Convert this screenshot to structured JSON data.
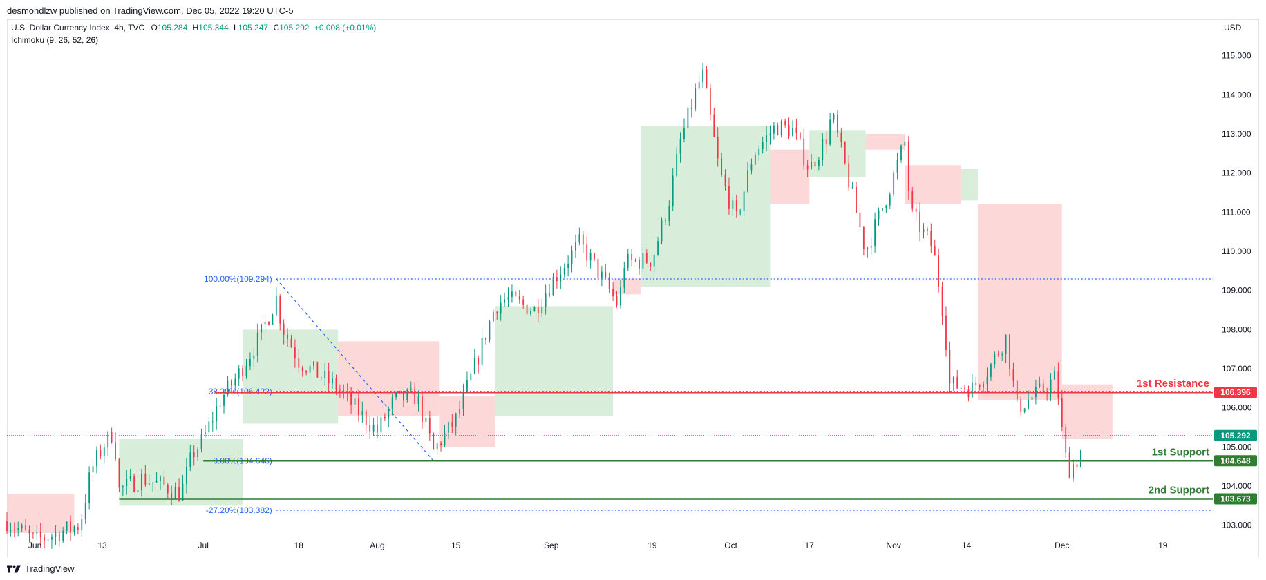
{
  "header": {
    "published": "desmondlzw published on TradingView.com, Dec 05, 2022 19:20 UTC-5"
  },
  "legend": {
    "symbol": "U.S. Dollar Currency Index, 4h, TVC",
    "o_label": "O",
    "o_value": "105.284",
    "h_label": "H",
    "h_value": "105.344",
    "l_label": "L",
    "l_value": "105.247",
    "c_label": "C",
    "c_value": "105.292",
    "change": "+0.008 (+0.01%)",
    "indicator": "Ichimoku (9, 26, 52, 26)"
  },
  "currency": "USD",
  "footer": {
    "brand": "TradingView",
    "logo_icon": "tradingview-logo-icon"
  },
  "colors": {
    "up": "#089981",
    "down": "#f23645",
    "resistance": "#f23645",
    "support": "#2e7d32",
    "fib": "#2962ff",
    "price": "#089981",
    "cloud_bull": "#d7ecd9",
    "cloud_bear": "#fdd6d6",
    "axis_text": "#131722"
  },
  "chart_data": {
    "type": "candlestick",
    "timeframe": "4h",
    "ylim": [
      102.5,
      115.4
    ],
    "y_ticks": [
      103.0,
      104.0,
      105.0,
      106.0,
      107.0,
      108.0,
      109.0,
      110.0,
      111.0,
      112.0,
      113.0,
      114.0,
      115.0
    ],
    "y_tick_labels": [
      "103.000",
      "104.000",
      "105.000",
      "106.000",
      "107.000",
      "108.000",
      "109.000",
      "110.000",
      "111.000",
      "112.000",
      "113.000",
      "114.000",
      "115.000"
    ],
    "x_ticks": [
      "Jun",
      "13",
      "Jul",
      "18",
      "Aug",
      "15",
      "Sep",
      "19",
      "Oct",
      "17",
      "Nov",
      "14",
      "Dec",
      "19"
    ],
    "x_tick_dates": [
      "2022-06-01",
      "2022-06-13",
      "2022-07-01",
      "2022-07-18",
      "2022-08-01",
      "2022-08-15",
      "2022-09-01",
      "2022-09-19",
      "2022-10-03",
      "2022-10-17",
      "2022-11-01",
      "2022-11-14",
      "2022-12-01",
      "2022-12-19"
    ],
    "x_range": [
      "2022-05-27",
      "2022-12-28"
    ],
    "price_path": [
      [
        "2022-05-27",
        103.1
      ],
      [
        "2022-06-01",
        102.6
      ],
      [
        "2022-06-09",
        103.0
      ],
      [
        "2022-06-11",
        104.4
      ],
      [
        "2022-06-13",
        105.0
      ],
      [
        "2022-06-15",
        105.4
      ],
      [
        "2022-06-16",
        103.9
      ],
      [
        "2022-06-20",
        104.2
      ],
      [
        "2022-06-24",
        104.0
      ],
      [
        "2022-06-27",
        103.8
      ],
      [
        "2022-06-29",
        104.8
      ],
      [
        "2022-07-01",
        105.2
      ],
      [
        "2022-07-04",
        106.2
      ],
      [
        "2022-07-07",
        106.8
      ],
      [
        "2022-07-11",
        107.8
      ],
      [
        "2022-07-14",
        108.8
      ],
      [
        "2022-07-15",
        108.1
      ],
      [
        "2022-07-18",
        107.2
      ],
      [
        "2022-07-21",
        106.9
      ],
      [
        "2022-07-25",
        106.5
      ],
      [
        "2022-07-28",
        106.0
      ],
      [
        "2022-08-01",
        105.4
      ],
      [
        "2022-08-04",
        106.2
      ],
      [
        "2022-08-08",
        106.3
      ],
      [
        "2022-08-11",
        104.9
      ],
      [
        "2022-08-15",
        105.7
      ],
      [
        "2022-08-18",
        106.9
      ],
      [
        "2022-08-22",
        108.6
      ],
      [
        "2022-08-24",
        108.8
      ],
      [
        "2022-08-29",
        108.5
      ],
      [
        "2022-09-01",
        109.2
      ],
      [
        "2022-09-06",
        110.2
      ],
      [
        "2022-09-08",
        109.8
      ],
      [
        "2022-09-13",
        108.6
      ],
      [
        "2022-09-14",
        109.7
      ],
      [
        "2022-09-19",
        109.8
      ],
      [
        "2022-09-22",
        111.3
      ],
      [
        "2022-09-24",
        112.8
      ],
      [
        "2022-09-27",
        114.2
      ],
      [
        "2022-09-28",
        114.5
      ],
      [
        "2022-10-01",
        112.0
      ],
      [
        "2022-10-04",
        110.8
      ],
      [
        "2022-10-07",
        112.5
      ],
      [
        "2022-10-11",
        113.2
      ],
      [
        "2022-10-14",
        113.1
      ],
      [
        "2022-10-17",
        112.1
      ],
      [
        "2022-10-20",
        112.9
      ],
      [
        "2022-10-21",
        113.5
      ],
      [
        "2022-10-24",
        111.8
      ],
      [
        "2022-10-27",
        110.0
      ],
      [
        "2022-10-31",
        111.5
      ],
      [
        "2022-11-03",
        112.8
      ],
      [
        "2022-11-04",
        111.0
      ],
      [
        "2022-11-08",
        110.1
      ],
      [
        "2022-11-10",
        108.3
      ],
      [
        "2022-11-11",
        106.6
      ],
      [
        "2022-11-15",
        106.5
      ],
      [
        "2022-11-18",
        107.0
      ],
      [
        "2022-11-21",
        107.8
      ],
      [
        "2022-11-23",
        106.0
      ],
      [
        "2022-11-28",
        106.5
      ],
      [
        "2022-11-30",
        106.8
      ],
      [
        "2022-12-01",
        105.4
      ],
      [
        "2022-12-02",
        104.4
      ],
      [
        "2022-12-04",
        104.7
      ],
      [
        "2022-12-05",
        105.292
      ]
    ],
    "ichimoku_cloud": [
      {
        "from": "2022-05-27",
        "to": "2022-06-08",
        "low": 102.8,
        "high": 103.8,
        "sentiment": "bearish"
      },
      {
        "from": "2022-06-16",
        "to": "2022-07-08",
        "low": 103.5,
        "high": 105.2,
        "sentiment": "bullish"
      },
      {
        "from": "2022-07-08",
        "to": "2022-07-25",
        "low": 105.6,
        "high": 108.0,
        "sentiment": "bullish"
      },
      {
        "from": "2022-07-25",
        "to": "2022-08-12",
        "low": 105.8,
        "high": 107.7,
        "sentiment": "bearish"
      },
      {
        "from": "2022-08-12",
        "to": "2022-08-22",
        "low": 105.0,
        "high": 106.3,
        "sentiment": "bearish"
      },
      {
        "from": "2022-08-22",
        "to": "2022-09-12",
        "low": 105.8,
        "high": 108.6,
        "sentiment": "bullish"
      },
      {
        "from": "2022-09-12",
        "to": "2022-09-17",
        "low": 108.9,
        "high": 109.3,
        "sentiment": "bearish"
      },
      {
        "from": "2022-09-17",
        "to": "2022-10-10",
        "low": 109.1,
        "high": 113.2,
        "sentiment": "bullish"
      },
      {
        "from": "2022-10-10",
        "to": "2022-10-17",
        "low": 111.2,
        "high": 112.6,
        "sentiment": "bearish"
      },
      {
        "from": "2022-10-17",
        "to": "2022-10-27",
        "low": 111.9,
        "high": 113.1,
        "sentiment": "bullish"
      },
      {
        "from": "2022-10-27",
        "to": "2022-11-03",
        "low": 112.6,
        "high": 113.0,
        "sentiment": "bearish"
      },
      {
        "from": "2022-11-03",
        "to": "2022-11-13",
        "low": 111.2,
        "high": 112.2,
        "sentiment": "bearish"
      },
      {
        "from": "2022-11-13",
        "to": "2022-11-16",
        "low": 111.3,
        "high": 112.1,
        "sentiment": "bullish"
      },
      {
        "from": "2022-11-16",
        "to": "2022-12-01",
        "low": 106.2,
        "high": 111.2,
        "sentiment": "bearish"
      },
      {
        "from": "2022-12-01",
        "to": "2022-12-10",
        "low": 105.2,
        "high": 106.6,
        "sentiment": "bearish"
      }
    ],
    "horizontal_levels": [
      {
        "label": "1st Resistance",
        "value": 106.396,
        "value_label": "106.396",
        "role": "resistance"
      },
      {
        "label": "1st Support",
        "value": 104.648,
        "value_label": "104.648",
        "role": "support"
      },
      {
        "label": "2nd Support",
        "value": 103.673,
        "value_label": "103.673",
        "role": "support"
      }
    ],
    "last_price": {
      "value": 105.292,
      "label": "105.292"
    },
    "fibonacci": {
      "from_date": "2022-07-14",
      "to_date": "2022-08-11",
      "from_value": 109.294,
      "to_value": 104.646,
      "levels": [
        {
          "label": "100.00%(109.294)",
          "value": 109.294
        },
        {
          "label": "38.20%(106.422)",
          "value": 106.422
        },
        {
          "label": "0.00%(104.646)",
          "value": 104.646
        },
        {
          "label": "-27.20%(103.382)",
          "value": 103.382
        }
      ]
    }
  }
}
